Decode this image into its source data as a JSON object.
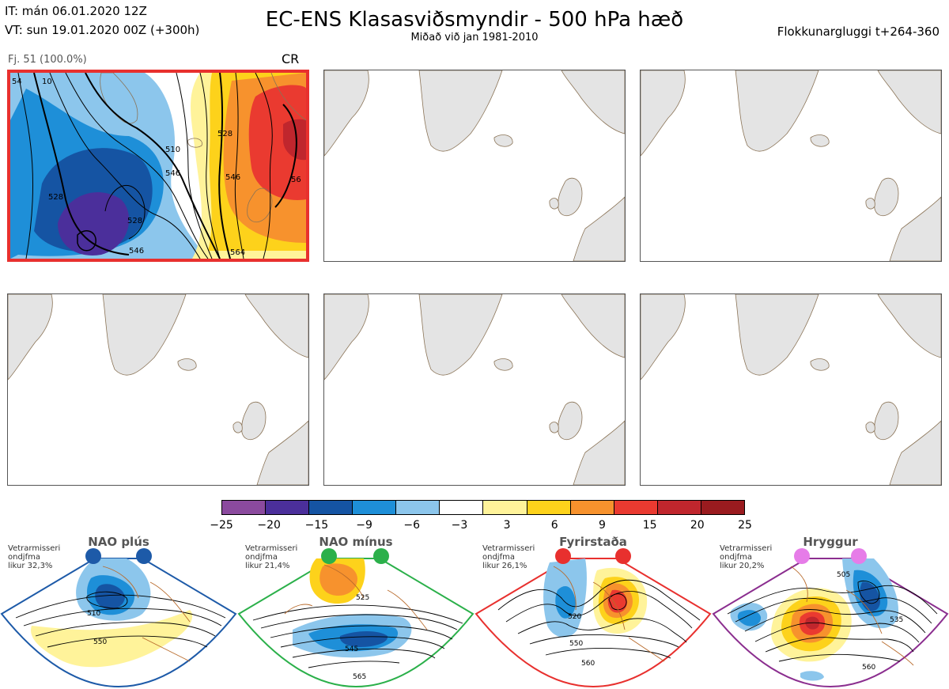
{
  "header": {
    "it_line": "IT: mán 06.01.2020 12Z",
    "vt_line": "VT: sun 19.01.2020 00Z  (+300h)",
    "title": "EC-ENS Klasasviðsmyndir - 500 hPa hæð",
    "subtitle": "Miðað við jan 1981-2010",
    "window_label": "Flokkunargluggi t+264-360"
  },
  "panel_1": {
    "member_label": "Fj. 51 (100.0%)",
    "regime_code": "CR",
    "contour_labels": [
      "528",
      "546",
      "528",
      "546",
      "528",
      "546",
      "56",
      "564",
      "510",
      "54",
      "10"
    ]
  },
  "colorbar": {
    "ticks": [
      "−25",
      "−20",
      "−15",
      "−9",
      "−6",
      "−3",
      "3",
      "6",
      "9",
      "15",
      "20",
      "25"
    ],
    "colors": [
      "#8b4a9e",
      "#4b2f9b",
      "#1554a3",
      "#1e8fd8",
      "#8cc6ec",
      "#ffffff",
      "#fff39a",
      "#fdd21b",
      "#f7922d",
      "#ea3a30",
      "#c0262d",
      "#9a1b1f"
    ]
  },
  "regimes": [
    {
      "title": "NAO plús",
      "note": "Vetrarmisseri\nondjfma\nlikur 32,3%",
      "color": "#1d5aa8",
      "contour_labels": [
        "510",
        "550"
      ]
    },
    {
      "title": "NAO mínus",
      "note": "Vetrarmisseri\nondjfma\nlikur 21,4%",
      "color": "#2bb04a",
      "contour_labels": [
        "525",
        "545",
        "565"
      ]
    },
    {
      "title": "Fyrirstaða",
      "note": "Vetrarmisseri\nondjfma\nlikur 26,1%",
      "color": "#e8302e",
      "contour_labels": [
        "520",
        "550",
        "560"
      ]
    },
    {
      "title": "Hryggur",
      "note": "Vetrarmisseri\nondjfma\nlikur 20,2%",
      "color": "#8b2e8f",
      "contour_labels": [
        "505",
        "535",
        "560"
      ]
    }
  ]
}
